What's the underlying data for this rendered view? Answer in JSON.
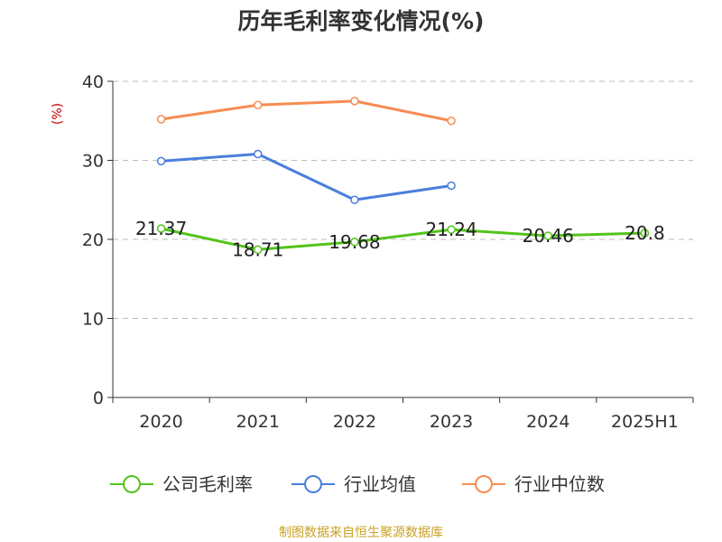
{
  "title": "历年毛利率变化情况(%)",
  "source": "制图数据来自恒生聚源数据库",
  "chart_data": {
    "type": "line",
    "title": "历年毛利率变化情况(%)",
    "ylabel": "(%)",
    "categories": [
      "2020",
      "2021",
      "2022",
      "2023",
      "2024",
      "2025H1"
    ],
    "ylim": [
      0,
      40
    ],
    "yticks": [
      0,
      10,
      20,
      30,
      40
    ],
    "grid": true,
    "legend_position": "bottom",
    "series": [
      {
        "name": "公司毛利率",
        "color": "#52c41a",
        "values": [
          21.37,
          18.71,
          19.68,
          21.24,
          20.46,
          20.8
        ],
        "labels": [
          "21.37",
          "18.71",
          "19.68",
          "21.24",
          "20.46",
          "20.8"
        ]
      },
      {
        "name": "行业均值",
        "color": "#4a7fdb",
        "values": [
          29.9,
          30.8,
          25.0,
          26.8,
          null,
          null
        ]
      },
      {
        "name": "行业中位数",
        "color": "#f78c53",
        "values": [
          35.2,
          37.0,
          37.5,
          35.0,
          null,
          null
        ]
      }
    ]
  }
}
